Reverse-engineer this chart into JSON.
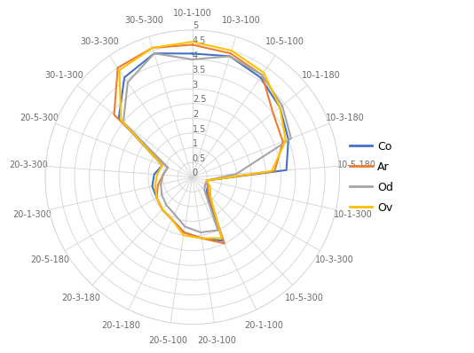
{
  "categories": [
    "10-1-100",
    "10-3-100",
    "10-5-100",
    "10-1-180",
    "10-3-180",
    "10-5-180",
    "10-1-300",
    "10-3-300",
    "10-5-300",
    "20-1-100",
    "20-3-100",
    "20-5-100",
    "20-1-180",
    "20-3-180",
    "20-5-180",
    "20-1-300",
    "20-3-300",
    "20-5-300",
    "30-1-300",
    "30-3-300",
    "30-5-300"
  ],
  "series": {
    "Co": {
      "color": "#4472C4",
      "values": [
        4.2,
        4.3,
        4.1,
        3.8,
        3.5,
        3.2,
        0.5,
        0.6,
        0.7,
        2.4,
        2.1,
        1.9,
        1.6,
        1.5,
        1.4,
        1.4,
        1.3,
        1.1,
        3.2,
        4.1,
        4.4
      ]
    },
    "Ar": {
      "color": "#ED7D31",
      "values": [
        4.5,
        4.4,
        4.2,
        3.5,
        3.3,
        2.8,
        0.5,
        0.6,
        0.8,
        2.5,
        2.1,
        1.9,
        1.6,
        1.5,
        1.4,
        1.2,
        1.0,
        0.9,
        3.4,
        4.5,
        4.6
      ]
    },
    "Od": {
      "color": "#A5A5A5",
      "values": [
        4.0,
        4.3,
        4.2,
        3.9,
        3.6,
        1.5,
        0.5,
        0.5,
        0.6,
        2.0,
        1.9,
        1.7,
        1.4,
        1.3,
        1.2,
        1.1,
        1.0,
        0.9,
        3.0,
        3.9,
        4.4
      ]
    },
    "Ov": {
      "color": "#FFC000",
      "values": [
        4.6,
        4.5,
        4.3,
        3.8,
        3.4,
        2.7,
        0.5,
        0.7,
        0.9,
        2.3,
        2.1,
        2.0,
        1.6,
        1.5,
        1.4,
        1.3,
        1.2,
        1.1,
        3.1,
        4.4,
        4.6
      ]
    }
  },
  "legend_labels": [
    "Co",
    "Ar",
    "Od",
    "Ov"
  ],
  "ylim": [
    0,
    5
  ],
  "ytick_vals": [
    0,
    0.5,
    1.0,
    1.5,
    2.0,
    2.5,
    3.0,
    3.5,
    4.0,
    4.5,
    5.0
  ],
  "ytick_labels": [
    "0",
    "0.5",
    "1",
    "1.5",
    "2",
    "2.5",
    "3",
    "3.5",
    "4",
    "4.5",
    "5"
  ]
}
